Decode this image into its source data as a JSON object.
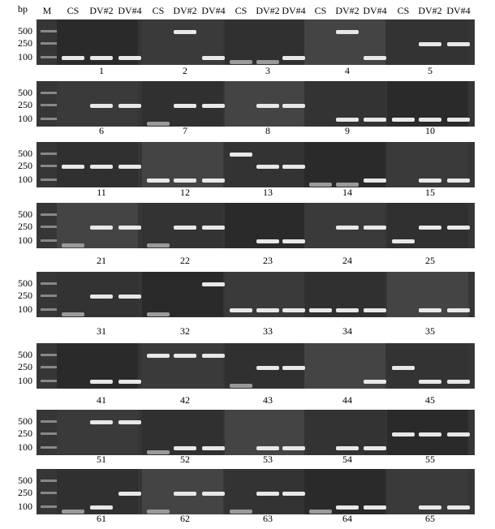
{
  "header": {
    "unit": "bp",
    "marker": "M",
    "groups": [
      [
        "CS",
        "DV#2",
        "DV#4"
      ],
      [
        "CS",
        "DV#2",
        "DV#4"
      ],
      [
        "CS",
        "DV#2",
        "DV#4"
      ],
      [
        "CS",
        "DV#2",
        "DV#4"
      ],
      [
        "CS",
        "DV#2",
        "DV#4"
      ]
    ]
  },
  "rows": [
    {
      "ladder": [
        "500",
        "250",
        "100"
      ],
      "lanes": [
        "1",
        "2",
        "3",
        "4",
        "5"
      ]
    },
    {
      "ladder": [
        "500",
        "250",
        "100"
      ],
      "lanes": [
        "6",
        "7",
        "8",
        "9",
        "10"
      ]
    },
    {
      "ladder": [
        "500",
        "250",
        "100"
      ],
      "lanes": [
        "11",
        "12",
        "13",
        "14",
        "15"
      ]
    },
    {
      "ladder": [
        "500",
        "250",
        "100"
      ],
      "lanes": [
        "21",
        "22",
        "23",
        "24",
        "25"
      ]
    },
    {
      "ladder": [
        "500",
        "250",
        "100"
      ],
      "lanes": [
        "31",
        "32",
        "33",
        "34",
        "35"
      ]
    },
    {
      "ladder": [
        "500",
        "250",
        "100"
      ],
      "lanes": [
        "41",
        "42",
        "43",
        "44",
        "45"
      ]
    },
    {
      "ladder": [
        "500",
        "250",
        "100"
      ],
      "lanes": [
        "51",
        "52",
        "53",
        "54",
        "55"
      ]
    },
    {
      "ladder": [
        "500",
        "250",
        "100"
      ],
      "lanes": [
        "61",
        "62",
        "63",
        "64",
        "65"
      ]
    }
  ]
}
